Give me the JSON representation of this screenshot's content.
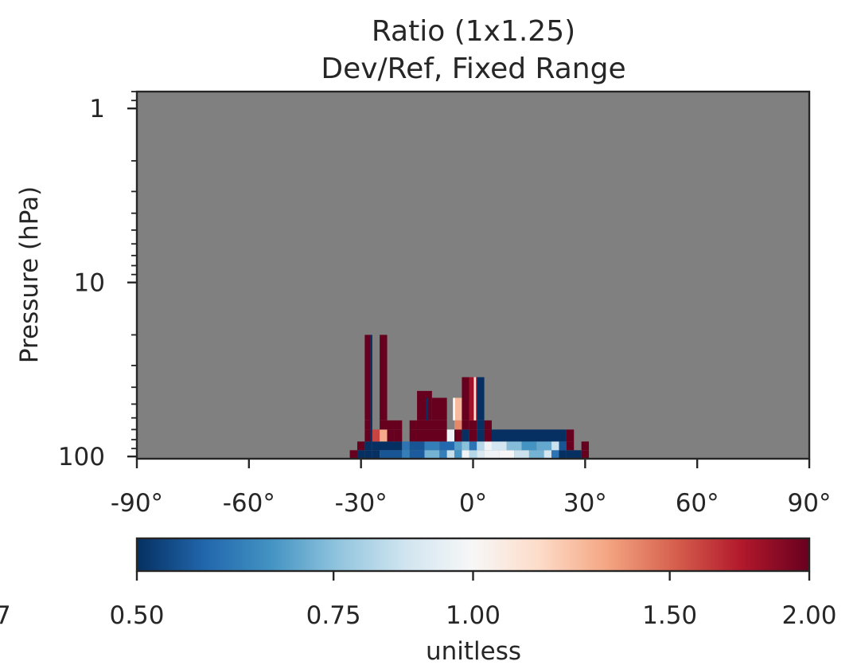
{
  "chart_data": {
    "type": "heatmap",
    "title": "Ratio (1x1.25)",
    "subtitle": "Dev/Ref, Fixed Range",
    "xlabel": "",
    "ylabel": "Pressure (hPa)",
    "x_ticks": [
      "-90°",
      "-60°",
      "-30°",
      "0°",
      "30°",
      "60°",
      "90°"
    ],
    "x_tick_values": [
      -90,
      -60,
      -30,
      0,
      30,
      60,
      90
    ],
    "xlim": [
      -90,
      90
    ],
    "y_scale": "log",
    "y_ticks": [
      "1",
      "10",
      "100"
    ],
    "y_tick_values": [
      1,
      10,
      100
    ],
    "ylim": [
      0.8,
      103
    ],
    "background_color": "#808080",
    "background_meaning": "no data",
    "colorbar": {
      "label": "unitless",
      "ticks": [
        "0.50",
        "0.75",
        "1.00",
        "1.50",
        "2.00"
      ],
      "tick_values": [
        0.5,
        0.75,
        1.0,
        1.5,
        2.0
      ],
      "range": [
        0.5,
        2.0
      ],
      "scale": "log",
      "colormap": "RdBu_r",
      "cut_off_left_label": "7"
    },
    "cells": [
      {
        "lat": [
          -33,
          -31
        ],
        "p": [
          92,
          103
        ],
        "v": 2.0
      },
      {
        "lat": [
          -31,
          -29
        ],
        "p": [
          92,
          103
        ],
        "v": 0.5
      },
      {
        "lat": [
          -29,
          -27
        ],
        "p": [
          92,
          103
        ],
        "v": 0.5
      },
      {
        "lat": [
          -27,
          -25
        ],
        "p": [
          92,
          103
        ],
        "v": 0.5
      },
      {
        "lat": [
          -25,
          -19
        ],
        "p": [
          92,
          103
        ],
        "v": 0.55
      },
      {
        "lat": [
          -19,
          -17
        ],
        "p": [
          92,
          103
        ],
        "v": 0.62
      },
      {
        "lat": [
          -17,
          -13
        ],
        "p": [
          92,
          103
        ],
        "v": 0.56
      },
      {
        "lat": [
          -13,
          -9
        ],
        "p": [
          92,
          103
        ],
        "v": 0.72
      },
      {
        "lat": [
          -9,
          -7
        ],
        "p": [
          92,
          103
        ],
        "v": 0.62
      },
      {
        "lat": [
          -7,
          -5
        ],
        "p": [
          92,
          103
        ],
        "v": 0.85
      },
      {
        "lat": [
          -5,
          -3
        ],
        "p": [
          92,
          103
        ],
        "v": 0.66
      },
      {
        "lat": [
          -3,
          -1
        ],
        "p": [
          92,
          103
        ],
        "v": 0.98
      },
      {
        "lat": [
          -1,
          1
        ],
        "p": [
          92,
          103
        ],
        "v": 0.82
      },
      {
        "lat": [
          1,
          3
        ],
        "p": [
          92,
          103
        ],
        "v": 0.9
      },
      {
        "lat": [
          3,
          7
        ],
        "p": [
          92,
          103
        ],
        "v": 0.97
      },
      {
        "lat": [
          7,
          11
        ],
        "p": [
          92,
          103
        ],
        "v": 1.0
      },
      {
        "lat": [
          11,
          15
        ],
        "p": [
          92,
          103
        ],
        "v": 0.86
      },
      {
        "lat": [
          15,
          19
        ],
        "p": [
          92,
          103
        ],
        "v": 0.72
      },
      {
        "lat": [
          19,
          21
        ],
        "p": [
          92,
          103
        ],
        "v": 0.88
      },
      {
        "lat": [
          21,
          23
        ],
        "p": [
          92,
          103
        ],
        "v": 0.6
      },
      {
        "lat": [
          23,
          25
        ],
        "p": [
          92,
          103
        ],
        "v": 0.5
      },
      {
        "lat": [
          25,
          29
        ],
        "p": [
          92,
          103
        ],
        "v": 0.5
      },
      {
        "lat": [
          29,
          31
        ],
        "p": [
          92,
          103
        ],
        "v": 2.0
      },
      {
        "lat": [
          -31,
          -29
        ],
        "p": [
          82,
          92
        ],
        "v": 2.0
      },
      {
        "lat": [
          -29,
          -27
        ],
        "p": [
          82,
          92
        ],
        "v": 0.5
      },
      {
        "lat": [
          -27,
          -19
        ],
        "p": [
          82,
          92
        ],
        "v": 0.5
      },
      {
        "lat": [
          -19,
          -17
        ],
        "p": [
          82,
          92
        ],
        "v": 0.6
      },
      {
        "lat": [
          -17,
          -13
        ],
        "p": [
          82,
          92
        ],
        "v": 0.55
      },
      {
        "lat": [
          -13,
          -9
        ],
        "p": [
          82,
          92
        ],
        "v": 0.62
      },
      {
        "lat": [
          -9,
          -5
        ],
        "p": [
          82,
          92
        ],
        "v": 0.58
      },
      {
        "lat": [
          -5,
          -3
        ],
        "p": [
          82,
          92
        ],
        "v": 0.68
      },
      {
        "lat": [
          -3,
          -1
        ],
        "p": [
          82,
          92
        ],
        "v": 0.75
      },
      {
        "lat": [
          -1,
          1
        ],
        "p": [
          82,
          92
        ],
        "v": 0.6
      },
      {
        "lat": [
          1,
          3
        ],
        "p": [
          82,
          92
        ],
        "v": 0.82
      },
      {
        "lat": [
          3,
          5
        ],
        "p": [
          82,
          92
        ],
        "v": 0.97
      },
      {
        "lat": [
          5,
          9
        ],
        "p": [
          82,
          92
        ],
        "v": 0.88
      },
      {
        "lat": [
          9,
          13
        ],
        "p": [
          82,
          92
        ],
        "v": 0.74
      },
      {
        "lat": [
          13,
          17
        ],
        "p": [
          82,
          92
        ],
        "v": 0.66
      },
      {
        "lat": [
          17,
          21
        ],
        "p": [
          82,
          92
        ],
        "v": 0.7
      },
      {
        "lat": [
          21,
          23
        ],
        "p": [
          82,
          92
        ],
        "v": 0.86
      },
      {
        "lat": [
          23,
          25
        ],
        "p": [
          82,
          92
        ],
        "v": 0.55
      },
      {
        "lat": [
          25,
          27
        ],
        "p": [
          82,
          92
        ],
        "v": 2.0
      },
      {
        "lat": [
          29,
          31
        ],
        "p": [
          82,
          92
        ],
        "v": 2.0
      },
      {
        "lat": [
          -29,
          -27
        ],
        "p": [
          70,
          82
        ],
        "v": 2.0
      },
      {
        "lat": [
          -27,
          -25
        ],
        "p": [
          70,
          82
        ],
        "v": 1.6
      },
      {
        "lat": [
          -25,
          -23
        ],
        "p": [
          70,
          82
        ],
        "v": 1.3
      },
      {
        "lat": [
          -23,
          -21
        ],
        "p": [
          70,
          82
        ],
        "v": 2.0
      },
      {
        "lat": [
          -21,
          -19
        ],
        "p": [
          70,
          82
        ],
        "v": 2.0
      },
      {
        "lat": [
          -17,
          -7
        ],
        "p": [
          70,
          82
        ],
        "v": 2.0
      },
      {
        "lat": [
          -7,
          -5
        ],
        "p": [
          70,
          82
        ],
        "v": 0.98
      },
      {
        "lat": [
          -5,
          -3
        ],
        "p": [
          70,
          82
        ],
        "v": 2.0
      },
      {
        "lat": [
          -3,
          -1
        ],
        "p": [
          70,
          82
        ],
        "v": 0.5
      },
      {
        "lat": [
          -1,
          1
        ],
        "p": [
          70,
          82
        ],
        "v": 2.0
      },
      {
        "lat": [
          1,
          3
        ],
        "p": [
          70,
          82
        ],
        "v": 0.5
      },
      {
        "lat": [
          3,
          5
        ],
        "p": [
          70,
          82
        ],
        "v": 2.0
      },
      {
        "lat": [
          5,
          25
        ],
        "p": [
          70,
          82
        ],
        "v": 0.5
      },
      {
        "lat": [
          25,
          27
        ],
        "p": [
          70,
          82
        ],
        "v": 2.0
      },
      {
        "lat": [
          -29,
          -27
        ],
        "p": [
          62,
          70
        ],
        "v": 2.0
      },
      {
        "lat": [
          -25,
          -19
        ],
        "p": [
          62,
          70
        ],
        "v": 2.0
      },
      {
        "lat": [
          -17,
          -7
        ],
        "p": [
          62,
          70
        ],
        "v": 2.0
      },
      {
        "lat": [
          -5,
          -3
        ],
        "p": [
          62,
          70
        ],
        "v": 1.4
      },
      {
        "lat": [
          -3,
          -1
        ],
        "p": [
          62,
          70
        ],
        "v": 2.0
      },
      {
        "lat": [
          -1,
          1
        ],
        "p": [
          62,
          70
        ],
        "v": 2.0
      },
      {
        "lat": [
          1,
          3
        ],
        "p": [
          62,
          70
        ],
        "v": 0.5
      },
      {
        "lat": [
          3,
          5
        ],
        "p": [
          62,
          70
        ],
        "v": 2.0
      },
      {
        "lat": [
          -29,
          -27
        ],
        "p": [
          20,
          62
        ],
        "v": 2.0
      },
      {
        "lat": [
          -25,
          -23
        ],
        "p": [
          20,
          62
        ],
        "v": 2.0
      },
      {
        "lat": [
          -15,
          -11
        ],
        "p": [
          42,
          62
        ],
        "v": 2.0
      },
      {
        "lat": [
          -11,
          -7
        ],
        "p": [
          46,
          62
        ],
        "v": 2.0
      },
      {
        "lat": [
          -5,
          -3
        ],
        "p": [
          46,
          62
        ],
        "v": 1.25
      },
      {
        "lat": [
          -3,
          -1
        ],
        "p": [
          35,
          62
        ],
        "v": 2.0
      },
      {
        "lat": [
          -1,
          1
        ],
        "p": [
          35,
          62
        ],
        "v": 1.8
      },
      {
        "lat": [
          1,
          3
        ],
        "p": [
          35,
          62
        ],
        "v": 0.5
      }
    ],
    "stripes": [
      {
        "lat": [
          -27.6,
          -27.0
        ],
        "p": [
          20,
          82
        ],
        "v": 0.5
      },
      {
        "lat": [
          -12.6,
          -12.0
        ],
        "p": [
          46,
          62
        ],
        "v": 0.5
      },
      {
        "lat": [
          -5.4,
          -4.8
        ],
        "p": [
          46,
          62
        ],
        "v": 1.0
      },
      {
        "lat": [
          0.2,
          0.8
        ],
        "p": [
          35,
          62
        ],
        "v": 1.1
      }
    ]
  }
}
